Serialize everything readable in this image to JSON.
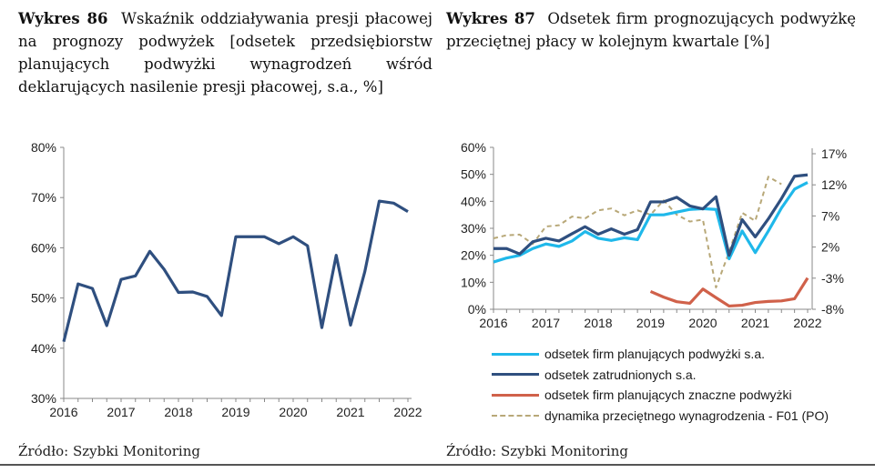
{
  "left": {
    "title_label": "Wykres 86",
    "title_text": "Wskaźnik oddziaływania presji płacowej na prognozy podwyżek [odsetek przedsiębiorstw planujących podwyżki wynagrodzeń wśród deklarujących nasilenie presji płacowej, s.a., %]",
    "source": "Źródło: Szybki Monitoring"
  },
  "right": {
    "title_label": "Wykres 87",
    "title_text": "Odsetek firm prognozujących podwyżkę przeciętnej płacy w kolejnym kwartale [%]",
    "source": "Źródło: Szybki Monitoring"
  },
  "chart_data": [
    {
      "type": "line",
      "x_ticks": [
        "2016",
        "2017",
        "2018",
        "2019",
        "2020",
        "2021",
        "2022"
      ],
      "y_ticks": [
        "30%",
        "40%",
        "50%",
        "60%",
        "70%",
        "80%"
      ],
      "ylim": [
        30,
        80
      ],
      "x_frequency": "quarterly, 2016Q1–2022Q1",
      "grid": false,
      "series": [
        {
          "color": "#2f4f7f",
          "values": [
            41.3,
            52.8,
            51.9,
            44.5,
            53.7,
            54.4,
            59.3,
            55.7,
            51.1,
            51.2,
            50.3,
            46.5,
            62.2,
            62.2,
            62.2,
            60.8,
            62.2,
            60.4,
            44.1,
            58.5,
            44.6,
            55.3,
            69.3,
            68.9,
            67.2
          ]
        }
      ]
    },
    {
      "type": "line",
      "x_ticks": [
        "2016",
        "2017",
        "2018",
        "2019",
        "2020",
        "2021",
        "2022"
      ],
      "y_ticks": [
        "0%",
        "10%",
        "20%",
        "30%",
        "40%",
        "50%",
        "60%"
      ],
      "y2_ticks": [
        "-8%",
        "-3%",
        "2%",
        "7%",
        "12%",
        "17%"
      ],
      "ylim": [
        0,
        60
      ],
      "y2lim": [
        -8,
        17
      ],
      "x_frequency": "quarterly, 2016Q1–2022Q1",
      "grid": false,
      "legend_position": "bottom",
      "series": [
        {
          "name": "odsetek firm planujących podwyżki s.a.",
          "color": "#1fb8ea",
          "axis": "left",
          "start_index": 0,
          "values": [
            17.5,
            19,
            20,
            22.5,
            24.2,
            23.3,
            25.3,
            28.8,
            26.3,
            25.5,
            26.5,
            25.8,
            35,
            35,
            36,
            37,
            37.3,
            37,
            18.7,
            29,
            21,
            29,
            37.5,
            44.5,
            47
          ]
        },
        {
          "name": "odsetek zatrudnionych s.a.",
          "color": "#2f4f7f",
          "axis": "left",
          "start_index": 0,
          "values": [
            22.5,
            22.5,
            20.5,
            25,
            26.3,
            25.3,
            28,
            30.6,
            27.8,
            29.8,
            27.8,
            29.5,
            39.8,
            39.8,
            41.5,
            38.3,
            37.2,
            41.7,
            20,
            33.2,
            26.8,
            33.5,
            41,
            49.3,
            49.8
          ]
        },
        {
          "name": "odsetek firm planujących znaczne podwyżki",
          "color": "#d0614a",
          "axis": "left",
          "start_index": 12,
          "values": [
            6.6,
            4.5,
            2.8,
            2.2,
            7.5,
            4.3,
            1.2,
            1.5,
            2.5,
            2.9,
            3.1,
            3.9,
            11.6
          ]
        },
        {
          "name": "dynamika przeciętnego wynagrodzenia - F01 (PO)",
          "color": "#b8a878",
          "axis": "right",
          "dashed": true,
          "start_index": 0,
          "values": [
            3.4,
            3.9,
            4.0,
            2.5,
            5.3,
            5.5,
            6.9,
            6.6,
            7.9,
            8.2,
            7.1,
            7.9,
            7.2,
            9.5,
            7.2,
            6.1,
            6.4,
            -4.5,
            1.2,
            7.5,
            6.2,
            13.3,
            12.1
          ]
        }
      ]
    }
  ]
}
